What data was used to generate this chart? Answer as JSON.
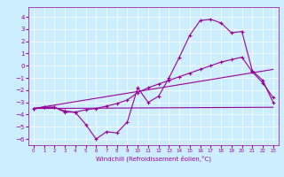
{
  "xlabel": "Windchill (Refroidissement éolien,°C)",
  "bg_color": "#cceeff",
  "line_color": "#990099",
  "grid_color": "#ffffff",
  "ylim": [
    -6.5,
    4.8
  ],
  "xlim": [
    -0.5,
    23.5
  ],
  "yticks": [
    -6,
    -5,
    -4,
    -3,
    -2,
    -1,
    0,
    1,
    2,
    3,
    4
  ],
  "xticks": [
    0,
    1,
    2,
    3,
    4,
    5,
    6,
    7,
    8,
    9,
    10,
    11,
    12,
    13,
    14,
    15,
    16,
    17,
    18,
    19,
    20,
    21,
    22,
    23
  ],
  "line1_x": [
    0,
    1,
    2,
    3,
    4,
    5,
    6,
    7,
    8,
    9,
    10,
    11,
    12,
    13,
    14,
    15,
    16,
    17,
    18,
    19,
    20,
    21,
    22,
    23
  ],
  "line1_y": [
    -3.5,
    -3.4,
    -3.4,
    -3.8,
    -3.8,
    -4.8,
    -6.0,
    -5.4,
    -5.5,
    -4.6,
    -1.8,
    -3.0,
    -2.5,
    -1.0,
    0.7,
    2.5,
    3.7,
    3.8,
    3.5,
    2.7,
    2.8,
    -0.4,
    -1.2,
    -3.0
  ],
  "line2_x": [
    0,
    1,
    2,
    3,
    4,
    5,
    6,
    7,
    8,
    9,
    10,
    11,
    12,
    13,
    14,
    15,
    16,
    17,
    18,
    19,
    20,
    21,
    22,
    23
  ],
  "line2_y": [
    -3.5,
    -3.4,
    -3.4,
    -3.7,
    -3.8,
    -3.6,
    -3.5,
    -3.3,
    -3.1,
    -2.8,
    -2.2,
    -1.8,
    -1.5,
    -1.2,
    -0.9,
    -0.6,
    -0.3,
    0.0,
    0.3,
    0.5,
    0.7,
    -0.5,
    -1.4,
    -2.6
  ],
  "line3_x": [
    0,
    23
  ],
  "line3_y": [
    -3.5,
    -0.3
  ],
  "line4_x": [
    0,
    23
  ],
  "line4_y": [
    -3.5,
    -3.4
  ],
  "ylabel_fontsize": 5,
  "tick_fontsize_x": 4,
  "tick_fontsize_y": 5,
  "linewidth": 0.8,
  "markersize": 3
}
